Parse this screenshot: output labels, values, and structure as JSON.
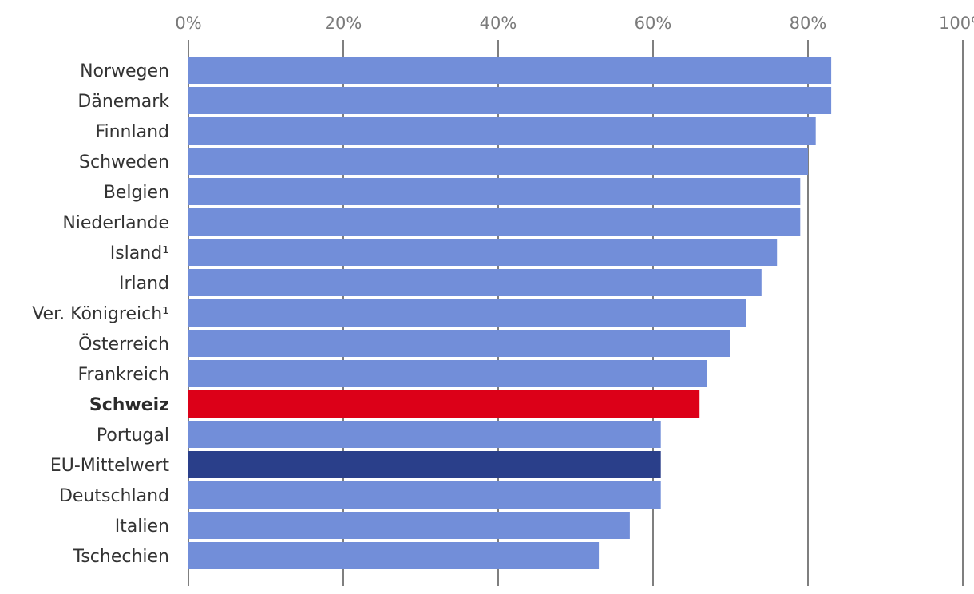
{
  "chart_data": {
    "type": "bar",
    "orientation": "horizontal",
    "title": "",
    "xlabel": "",
    "ylabel": "",
    "xlim": [
      0,
      100
    ],
    "x_ticks": [
      "0%",
      "20%",
      "40%",
      "60%",
      "80%",
      "100%"
    ],
    "grid": true,
    "legend": "none",
    "categories": [
      "Norwegen",
      "Dänemark",
      "Finnland",
      "Schweden",
      "Belgien",
      "Niederlande",
      "Island¹",
      "Irland",
      "Ver. Königreich¹",
      "Österreich",
      "Frankreich",
      "Schweiz",
      "Portugal",
      "EU-Mittelwert",
      "Deutschland",
      "Italien",
      "Tschechien"
    ],
    "values": [
      83,
      83,
      81,
      80,
      79,
      79,
      76,
      74,
      72,
      70,
      67,
      66,
      61,
      61,
      61,
      57,
      53
    ],
    "colors": {
      "default": "#728ed9",
      "Schweiz": "#dc0018",
      "EU-Mittelwert": "#2a3f8a"
    },
    "emphasized_category": "Schweiz"
  }
}
